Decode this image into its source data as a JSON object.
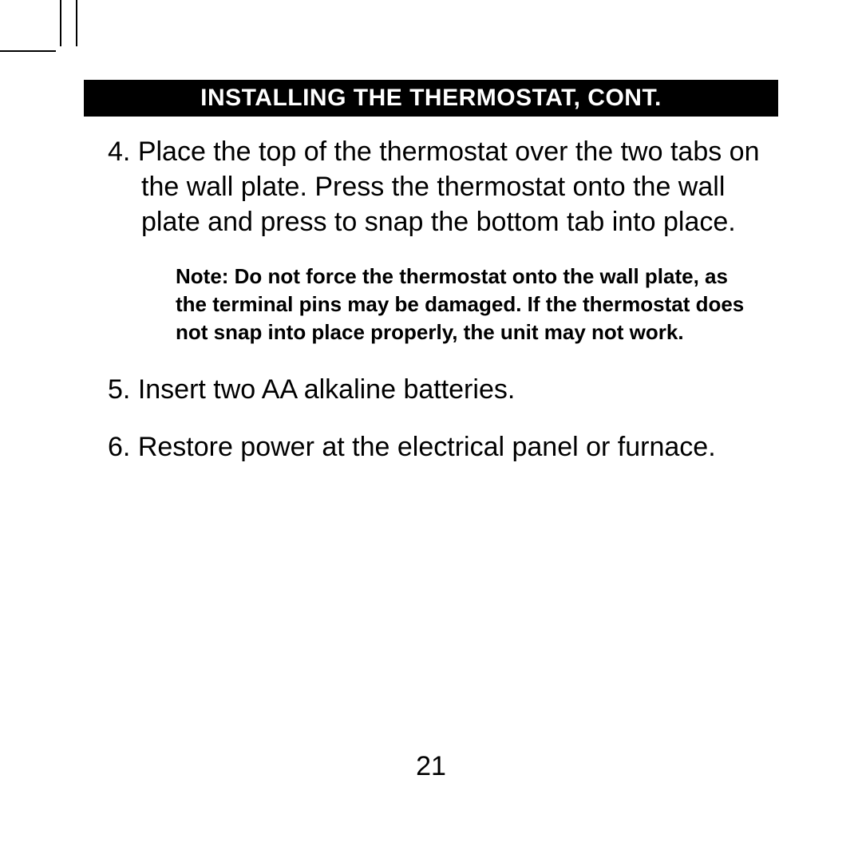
{
  "header": "INSTALLING THE THERMOSTAT, CONT.",
  "steps": [
    {
      "num": "4.",
      "text": "Place the top of the thermostat over the two tabs on the wall plate. Press the thermostat onto the wall plate and press to snap the bottom tab into place."
    },
    {
      "num": "5.",
      "text": "Insert two AA alkaline batteries."
    },
    {
      "num": "6.",
      "text": "Restore power at the electrical panel or furnace."
    }
  ],
  "note": "Note: Do not force the thermostat onto the wall plate, as the terminal pins may be damaged. If the thermostat does not snap into place properly, the unit may not work.",
  "page_number": "21",
  "colors": {
    "header_bg": "#000000",
    "header_text": "#ffffff",
    "body_text": "#000000",
    "page_bg": "#ffffff"
  },
  "fonts": {
    "header_size": 30,
    "body_size": 34,
    "note_size": 26,
    "page_num_size": 34
  }
}
